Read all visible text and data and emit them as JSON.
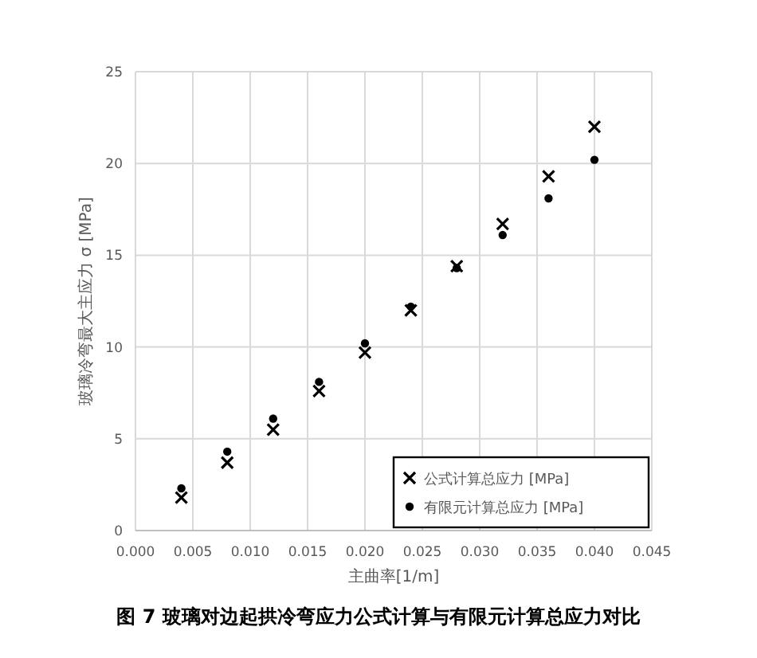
{
  "chart_data": {
    "type": "scatter",
    "xlabel": "主曲率[1/m]",
    "ylabel": "玻璃冷弯最大主应力 σ [MPa]",
    "annotations": [
      "图 7 玻璃对边起拱冷弯应力公式计算与有限元计算总应力对比"
    ],
    "x": [
      0.004,
      0.008,
      0.012,
      0.016,
      0.02,
      0.024,
      0.028,
      0.032,
      0.036,
      0.04
    ],
    "series": [
      {
        "name": "公式计算总应力 [MPa]",
        "color": "#000000",
        "marker": "cross",
        "values": [
          1.8,
          3.7,
          5.5,
          7.6,
          9.7,
          12.0,
          14.4,
          16.7,
          19.3,
          22.0
        ]
      },
      {
        "name": "有限元计算总应力 [MPa]",
        "color": "#000000",
        "marker": "circle",
        "values": [
          2.3,
          4.3,
          6.1,
          8.1,
          10.2,
          12.2,
          14.3,
          16.1,
          18.1,
          20.2
        ]
      }
    ],
    "xlim": [
      0,
      0.045
    ],
    "xticks": [
      {
        "value": 0,
        "label": "0.000"
      },
      {
        "value": 0.005,
        "label": "0.005"
      },
      {
        "value": 0.01,
        "label": "0.010"
      },
      {
        "value": 0.015,
        "label": "0.015"
      },
      {
        "value": 0.02,
        "label": "0.020"
      },
      {
        "value": 0.025,
        "label": "0.025"
      },
      {
        "value": 0.03,
        "label": "0.030"
      },
      {
        "value": 0.035,
        "label": "0.035"
      },
      {
        "value": 0.04,
        "label": "0.040"
      },
      {
        "value": 0.045,
        "label": "0.045"
      }
    ],
    "ylim": [
      0,
      25
    ],
    "yticks": [
      0,
      5,
      10,
      15,
      20,
      25
    ],
    "grid": true,
    "legend": "bottom right"
  }
}
